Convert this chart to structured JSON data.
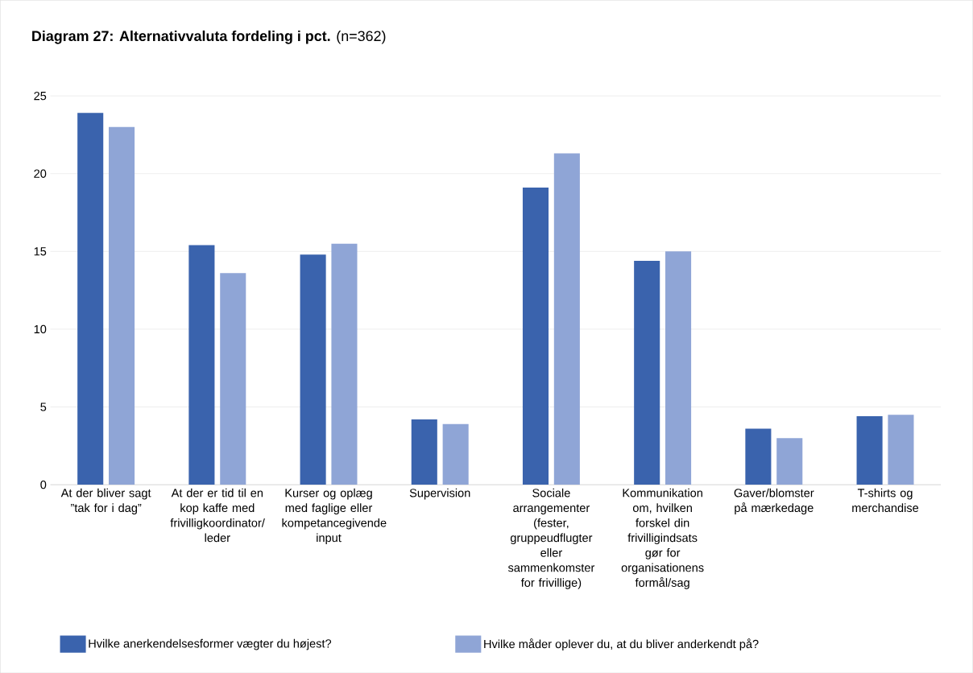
{
  "chart_data": {
    "type": "bar",
    "title": "**Diagram 27: Alternativvaluta fordeling i pct.** (n=362)",
    "categories": [
      "At der bliver sagt ”tak for i dag”",
      "At der er tid til en kop kaffe med frivilligkoordinator/ leder",
      "Kurser og oplæg med faglige eller kompetancegivende input",
      "Supervision",
      "Sociale arrangementer (fester, gruppeudflugter eller sammenkomster for frivillige)",
      "Kommunikation om, hvilken forskel din frivilligindsats gør for organisationens formål/sag",
      "Gaver/blomster på mærkedage",
      "T-shirts og merchandise"
    ],
    "series": [
      {
        "name": "Hvilke anerkendelsesformer vægter du højest?",
        "color": "#3a63ad",
        "values": [
          23.9,
          15.4,
          14.8,
          4.2,
          19.1,
          14.4,
          3.6,
          4.4
        ]
      },
      {
        "name": "Hvilke måder oplever du, at du bliver anderkendt på?",
        "color": "#8fa5d6",
        "values": [
          23.0,
          13.6,
          15.5,
          3.9,
          21.3,
          15.0,
          3.0,
          4.5
        ]
      }
    ],
    "ylim": [
      0,
      25
    ],
    "yticks": [
      0,
      5,
      10,
      15,
      20,
      25
    ],
    "grid": "y",
    "legend": "bottom"
  }
}
